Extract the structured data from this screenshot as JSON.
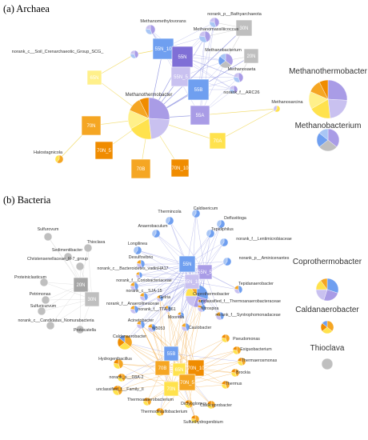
{
  "panels": {
    "archaea_title": "(a) Archaea",
    "bacteria_title": "(b) Bacteria"
  },
  "legend": {
    "methanothermobacter": "Methanothermobacter",
    "methanobacterium": "Methanobacterium",
    "coprothermobacter": "Coprothermobacter",
    "caldanaerobacter": "Caldanaerobacter",
    "thioclava": "Thioclava"
  },
  "colors": {
    "purple_dark": "#7f6fd6",
    "purple": "#a99ce6",
    "purple_light": "#c9c1f0",
    "blue": "#6f9ff0",
    "blue_light": "#a9c6f5",
    "yellow": "#ffe24d",
    "yellow_light": "#fff08a",
    "orange": "#f5a623",
    "orange_dark": "#f08c00",
    "grey": "#bfbfbf",
    "grey_dark": "#a6a6a6",
    "edge_blue": "#8a8fe0",
    "edge_yellow": "#f2dc6b",
    "edge_orange": "#f0a030",
    "edge_grey": "#c8c8c8"
  },
  "archaea": {
    "square_nodes": [
      {
        "id": "55N_10",
        "label": "55N_10",
        "color": "blue"
      },
      {
        "id": "55N",
        "label": "55N",
        "color": "purple_dark"
      },
      {
        "id": "55N_5",
        "label": "55N_5",
        "color": "purple_light"
      },
      {
        "id": "55B",
        "label": "55B",
        "color": "blue"
      },
      {
        "id": "55A",
        "label": "55A",
        "color": "purple"
      },
      {
        "id": "30N",
        "label": "30N",
        "color": "grey"
      },
      {
        "id": "20N",
        "label": "20N",
        "color": "grey"
      },
      {
        "id": "65N",
        "label": "65N",
        "color": "yellow_light"
      },
      {
        "id": "70N",
        "label": "70N",
        "color": "orange"
      },
      {
        "id": "70N_5",
        "label": "70N_5",
        "color": "orange_dark"
      },
      {
        "id": "70B",
        "label": "70B",
        "color": "orange"
      },
      {
        "id": "70N_10",
        "label": "70N_10",
        "color": "orange_dark"
      },
      {
        "id": "70A",
        "label": "70A",
        "color": "yellow"
      }
    ],
    "taxa": [
      {
        "label": "Methanomethylovorans"
      },
      {
        "label": "norank_p__Bathyarchaeota"
      },
      {
        "label": "Methanomassiliicoccus"
      },
      {
        "label": "norank_c__Soil_Crenarchaeotic_Group_SCG_"
      },
      {
        "label": "Methanobacterium"
      },
      {
        "label": "Methanosaeta"
      },
      {
        "label": "norank_f__ARC26"
      },
      {
        "label": "Methanosarcina"
      },
      {
        "label": "Methanothermobacter"
      },
      {
        "label": "Halostagnicola"
      }
    ]
  },
  "bacteria": {
    "square_nodes": [
      {
        "id": "55N",
        "label": "55N",
        "color": "blue"
      },
      {
        "id": "55N_5",
        "label": "55N_5",
        "color": "purple"
      },
      {
        "id": "55N_10",
        "label": "55N_10",
        "color": "purple_light"
      },
      {
        "id": "20N",
        "label": "20N",
        "color": "grey_dark"
      },
      {
        "id": "30N",
        "label": "30N",
        "color": "grey"
      },
      {
        "id": "55B",
        "label": "55B",
        "color": "blue"
      },
      {
        "id": "70B",
        "label": "70B",
        "color": "orange"
      },
      {
        "id": "65N",
        "label": "65N",
        "color": "yellow"
      },
      {
        "id": "70N_10",
        "label": "70N_10",
        "color": "orange_dark"
      },
      {
        "id": "70N_5",
        "label": "70N_5",
        "color": "orange"
      },
      {
        "id": "70N",
        "label": "70N",
        "color": "yellow"
      }
    ],
    "taxa": [
      {
        "label": "Thermincola"
      },
      {
        "label": "Caldisericum"
      },
      {
        "label": "Defluviitoga"
      },
      {
        "label": "Anaerobaculum"
      },
      {
        "label": "Tepidiphilus"
      },
      {
        "label": "Sulfurovum"
      },
      {
        "label": "Thioclava"
      },
      {
        "label": "Longilinea"
      },
      {
        "label": "norank_f__Lentimicrobiaceae"
      },
      {
        "label": "Sedimentibacter"
      },
      {
        "label": "Christensenellaceae_R-7_group"
      },
      {
        "label": "Desulfovibrio"
      },
      {
        "label": "norank_p__Aminicenantes"
      },
      {
        "label": "norank_c__Bacteroidetes_vadinHA17"
      },
      {
        "label": "Proteiniclasticum"
      },
      {
        "label": "norank_f__Coriobacteriaceae"
      },
      {
        "label": "Coprothermobacter"
      },
      {
        "label": "Nitrospira"
      },
      {
        "label": "Tepidanaerobacter"
      },
      {
        "label": "unclassified_f__Thermoanaerobacteraceae"
      },
      {
        "label": "Petrimonas"
      },
      {
        "label": "norank_c__SJA-15"
      },
      {
        "label": "Gelria"
      },
      {
        "label": "norank_f__Anaerolineaceae"
      },
      {
        "label": "Sulfuricurvum"
      },
      {
        "label": "norank_f__TTA-B61"
      },
      {
        "label": "Moorella"
      },
      {
        "label": "norank_f__Syntrophomonadaceae"
      },
      {
        "label": "norank_c__Candidatus_Nomurabacteria"
      },
      {
        "label": "Acinetobacter"
      },
      {
        "label": "Protocatella"
      },
      {
        "label": "W5053"
      },
      {
        "label": "Caulobacter"
      },
      {
        "label": "Pseudomonas"
      },
      {
        "label": "Caldanaerobacter"
      },
      {
        "label": "Exiguobacterium"
      },
      {
        "label": "Thermaerosmonas"
      },
      {
        "label": "Hydrogenibacillus"
      },
      {
        "label": "norank_o__D8A-2"
      },
      {
        "label": "Brockia"
      },
      {
        "label": "unclassified_f__Family_II"
      },
      {
        "label": "Thermus"
      },
      {
        "label": "Thermodesulfobacterium"
      },
      {
        "label": "Dictyoglomus"
      },
      {
        "label": "Caldicoprobacter"
      },
      {
        "label": "Thermoanaerobacterium"
      },
      {
        "label": "Sulfurihydrogenibium"
      }
    ]
  }
}
